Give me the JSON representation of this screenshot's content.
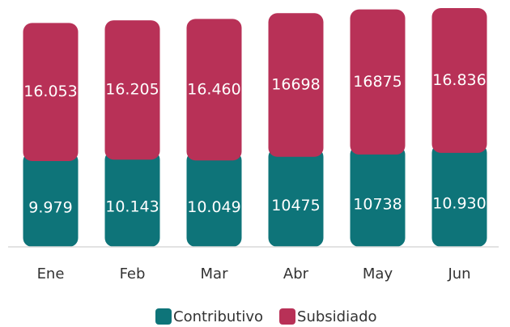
{
  "chart_data": {
    "type": "bar",
    "stacked": true,
    "categories": [
      "Ene",
      "Feb",
      "Mar",
      "Abr",
      "May",
      "Jun"
    ],
    "series": [
      {
        "name": "Contributivo",
        "color": "#0e7479",
        "values": [
          9979,
          10143,
          10049,
          10475,
          10738,
          10930
        ],
        "value_labels": [
          "9.979",
          "10.143",
          "10.049",
          "10475",
          "10738",
          "10.930"
        ]
      },
      {
        "name": "Subsidiado",
        "color": "#b83157",
        "values": [
          16053,
          16205,
          16460,
          16698,
          16875,
          16836
        ],
        "value_labels": [
          "16.053",
          "16.205",
          "16.460",
          "16698",
          "16875",
          "16.836"
        ]
      }
    ],
    "legend": "bottom"
  }
}
